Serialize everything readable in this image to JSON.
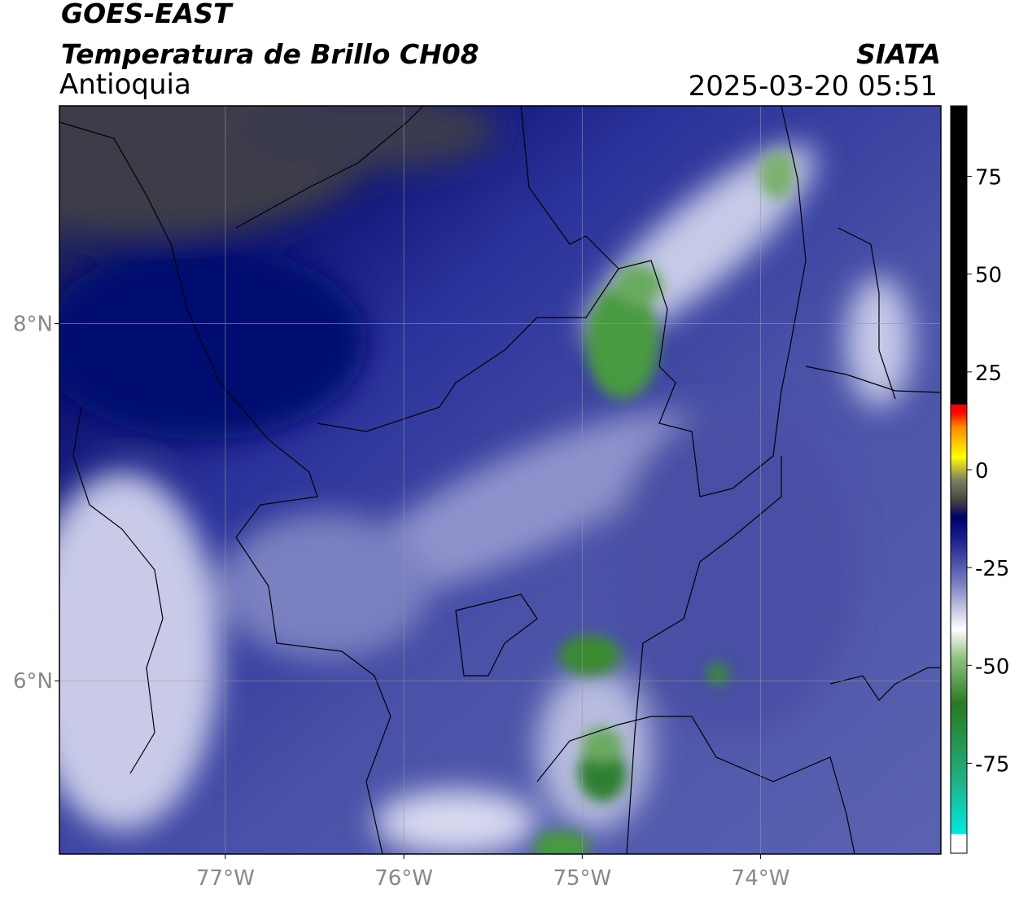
{
  "header": {
    "satellite": "GOES-EAST",
    "product": "Temperatura de Brillo CH08",
    "region": "Antioquia",
    "source": "SIATA",
    "timestamp": "2025-03-20 05:51"
  },
  "map": {
    "lon_range": [
      -77.93,
      -72.99
    ],
    "lat_range": [
      5.03,
      9.22
    ],
    "lon_ticks": [
      {
        "value": -77,
        "label": "77°W"
      },
      {
        "value": -76,
        "label": "76°W"
      },
      {
        "value": -75,
        "label": "75°W"
      },
      {
        "value": -74,
        "label": "74°W"
      }
    ],
    "lat_ticks": [
      {
        "value": 8,
        "label": "8°N"
      },
      {
        "value": 6,
        "label": "6°N"
      }
    ],
    "grid": true
  },
  "colorbar": {
    "lim": [
      -98,
      93
    ],
    "ticks": [
      75,
      50,
      25,
      0,
      -25,
      -50,
      -75
    ]
  }
}
